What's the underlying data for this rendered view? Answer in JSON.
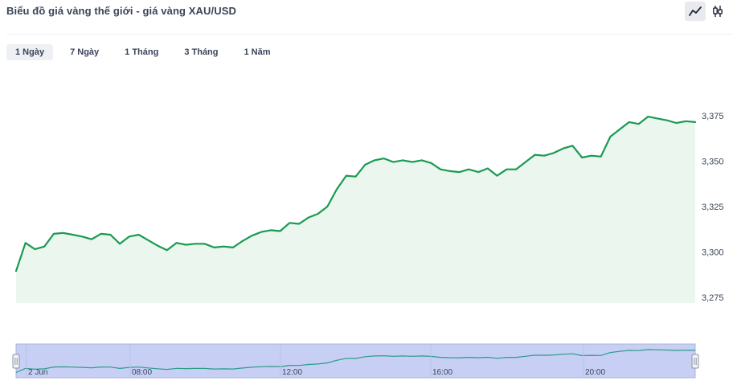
{
  "header": {
    "title": "Biểu đồ giá vàng thế giới - giá vàng XAU/USD",
    "chart_type_buttons": [
      {
        "icon": "line-chart-icon",
        "active": true
      },
      {
        "icon": "candlestick-icon",
        "active": false
      }
    ]
  },
  "tabs": [
    {
      "label": "1 Ngày",
      "active": true
    },
    {
      "label": "7 Ngày",
      "active": false
    },
    {
      "label": "1 Tháng",
      "active": false
    },
    {
      "label": "3 Tháng",
      "active": false
    },
    {
      "label": "1 Năm",
      "active": false
    }
  ],
  "colors": {
    "line": "#1a9a52",
    "area": "#eaf6ee",
    "navigator_fill": "#c7d0f4",
    "navigator_line": "#2a9b88"
  },
  "chart_data": {
    "type": "area",
    "y_ticks": [
      "3,375",
      "3,350",
      "3,325",
      "3,300",
      "3,275"
    ],
    "y_tick_values": [
      3375,
      3350,
      3325,
      3300,
      3275
    ],
    "ylim": [
      3275,
      3375
    ],
    "navigator_labels": [
      "2 Jun",
      "08:00",
      "12:00",
      "16:00",
      "20:00"
    ],
    "series": [
      {
        "values": [
          3289.5,
          3305.0,
          3301.5,
          3303.0,
          3310.0,
          3310.5,
          3309.5,
          3308.5,
          3307.0,
          3310.0,
          3309.5,
          3304.5,
          3308.5,
          3309.5,
          3306.5,
          3303.5,
          3301.0,
          3305.0,
          3304.0,
          3304.5,
          3304.5,
          3302.5,
          3303.0,
          3302.5,
          3306.0,
          3309.0,
          3311.0,
          3312.0,
          3311.5,
          3316.0,
          3315.5,
          3319.0,
          3321.0,
          3325.0,
          3334.5,
          3342.0,
          3341.5,
          3348.0,
          3350.5,
          3351.5,
          3349.5,
          3350.5,
          3349.5,
          3350.5,
          3349.0,
          3345.5,
          3344.5,
          3344.0,
          3345.5,
          3344.0,
          3346.0,
          3342.0,
          3345.5,
          3345.5,
          3349.5,
          3353.5,
          3353.0,
          3354.5,
          3357.0,
          3358.5,
          3352.0,
          3353.0,
          3352.5,
          3363.5,
          3367.5,
          3371.5,
          3370.5,
          3374.5,
          3373.5,
          3372.5,
          3371.0,
          3372.0,
          3371.5
        ]
      }
    ]
  }
}
